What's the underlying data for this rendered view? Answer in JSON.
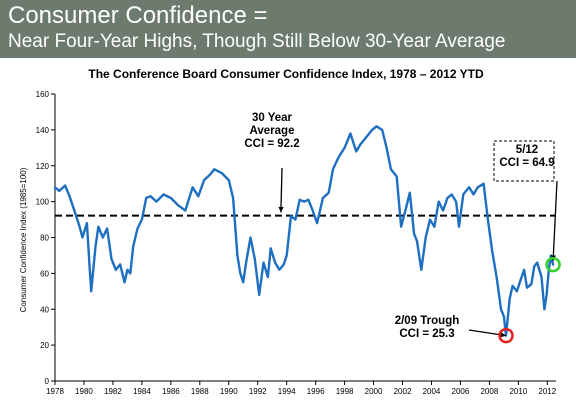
{
  "banner": {
    "title_line1": "Consumer Confidence =",
    "title_line2": "Near Four-Year Highs, Though Still Below 30-Year Average"
  },
  "colors": {
    "banner_bg": "#6d7b6f",
    "series": "#1f6fc1",
    "trough_marker": "#e0231e",
    "latest_marker": "#33d12f",
    "average_line": "#000000"
  },
  "chart_data": {
    "type": "line",
    "title": "The Conference Board Consumer Confidence Index, 1978 – 2012 YTD",
    "ylabel": "Consumer Confidence Index (1985=100)",
    "xlabel": "",
    "xlim": [
      1978,
      2012.6
    ],
    "ylim": [
      0,
      160
    ],
    "yticks": [
      0,
      20,
      40,
      60,
      80,
      100,
      120,
      140,
      160
    ],
    "xticks": [
      1978,
      1980,
      1982,
      1984,
      1986,
      1988,
      1990,
      1992,
      1994,
      1996,
      1998,
      2000,
      2002,
      2004,
      2006,
      2008,
      2010,
      2012
    ],
    "grid": false,
    "series": [
      {
        "values": [
          [
            1978.0,
            108
          ],
          [
            1978.3,
            106
          ],
          [
            1978.7,
            109
          ],
          [
            1979.0,
            103
          ],
          [
            1979.3,
            96
          ],
          [
            1979.7,
            86
          ],
          [
            1979.9,
            80
          ],
          [
            1980.2,
            88
          ],
          [
            1980.4,
            62
          ],
          [
            1980.5,
            50
          ],
          [
            1980.8,
            75
          ],
          [
            1981.0,
            86
          ],
          [
            1981.3,
            80
          ],
          [
            1981.6,
            85
          ],
          [
            1981.9,
            68
          ],
          [
            1982.2,
            62
          ],
          [
            1982.5,
            65
          ],
          [
            1982.8,
            55
          ],
          [
            1983.0,
            62
          ],
          [
            1983.2,
            60
          ],
          [
            1983.4,
            75
          ],
          [
            1983.7,
            85
          ],
          [
            1984.0,
            90
          ],
          [
            1984.3,
            102
          ],
          [
            1984.6,
            103
          ],
          [
            1985.0,
            100
          ],
          [
            1985.5,
            104
          ],
          [
            1986.0,
            102
          ],
          [
            1986.5,
            98
          ],
          [
            1987.0,
            95
          ],
          [
            1987.5,
            108
          ],
          [
            1987.9,
            103
          ],
          [
            1988.3,
            112
          ],
          [
            1988.7,
            115
          ],
          [
            1989.0,
            118
          ],
          [
            1989.5,
            116
          ],
          [
            1990.0,
            112
          ],
          [
            1990.3,
            102
          ],
          [
            1990.6,
            70
          ],
          [
            1990.8,
            60
          ],
          [
            1991.0,
            55
          ],
          [
            1991.2,
            66
          ],
          [
            1991.5,
            80
          ],
          [
            1991.8,
            68
          ],
          [
            1992.1,
            48
          ],
          [
            1992.4,
            66
          ],
          [
            1992.7,
            58
          ],
          [
            1992.9,
            74
          ],
          [
            1993.2,
            66
          ],
          [
            1993.5,
            62
          ],
          [
            1993.8,
            65
          ],
          [
            1994.0,
            70
          ],
          [
            1994.3,
            92
          ],
          [
            1994.6,
            90
          ],
          [
            1994.9,
            101
          ],
          [
            1995.2,
            100
          ],
          [
            1995.5,
            101
          ],
          [
            1995.8,
            95
          ],
          [
            1996.1,
            88
          ],
          [
            1996.5,
            102
          ],
          [
            1996.9,
            105
          ],
          [
            1997.2,
            118
          ],
          [
            1997.6,
            125
          ],
          [
            1998.0,
            130
          ],
          [
            1998.4,
            138
          ],
          [
            1998.8,
            128
          ],
          [
            1999.1,
            132
          ],
          [
            1999.5,
            136
          ],
          [
            1999.9,
            140
          ],
          [
            2000.2,
            142
          ],
          [
            2000.6,
            140
          ],
          [
            2000.9,
            130
          ],
          [
            2001.2,
            118
          ],
          [
            2001.6,
            114
          ],
          [
            2001.9,
            86
          ],
          [
            2002.2,
            95
          ],
          [
            2002.5,
            105
          ],
          [
            2002.8,
            82
          ],
          [
            2003.0,
            78
          ],
          [
            2003.3,
            62
          ],
          [
            2003.6,
            80
          ],
          [
            2003.9,
            90
          ],
          [
            2004.2,
            86
          ],
          [
            2004.5,
            100
          ],
          [
            2004.8,
            95
          ],
          [
            2005.1,
            102
          ],
          [
            2005.4,
            104
          ],
          [
            2005.7,
            100
          ],
          [
            2005.9,
            86
          ],
          [
            2006.2,
            104
          ],
          [
            2006.6,
            108
          ],
          [
            2006.9,
            104
          ],
          [
            2007.2,
            108
          ],
          [
            2007.6,
            110
          ],
          [
            2007.9,
            90
          ],
          [
            2008.2,
            72
          ],
          [
            2008.5,
            58
          ],
          [
            2008.8,
            40
          ],
          [
            2009.0,
            36
          ],
          [
            2009.15,
            25.3
          ],
          [
            2009.4,
            46
          ],
          [
            2009.6,
            53
          ],
          [
            2009.9,
            50
          ],
          [
            2010.1,
            55
          ],
          [
            2010.4,
            62
          ],
          [
            2010.6,
            52
          ],
          [
            2010.9,
            54
          ],
          [
            2011.1,
            64
          ],
          [
            2011.3,
            66
          ],
          [
            2011.6,
            58
          ],
          [
            2011.8,
            40
          ],
          [
            2011.95,
            48
          ],
          [
            2012.1,
            62
          ],
          [
            2012.25,
            70
          ],
          [
            2012.4,
            64.9
          ]
        ]
      }
    ],
    "reference_line": {
      "y": 92.2,
      "style": "dashed"
    },
    "annotations": [
      {
        "lines": [
          "30 Year",
          "Average",
          "CCI = 92.2"
        ],
        "arrow_to": [
          1993.6,
          94
        ]
      },
      {
        "lines": [
          "5/12",
          "CCI = 64.9"
        ],
        "arrow_to": [
          2012.4,
          67
        ]
      },
      {
        "lines": [
          "2/09 Trough",
          "CCI = 25.3"
        ],
        "arrow_to": [
          2009.15,
          25.3
        ]
      }
    ],
    "markers": [
      {
        "x": 2009.15,
        "y": 25.3,
        "color": "#e0231e"
      },
      {
        "x": 2012.4,
        "y": 64.9,
        "color": "#33d12f"
      }
    ]
  }
}
